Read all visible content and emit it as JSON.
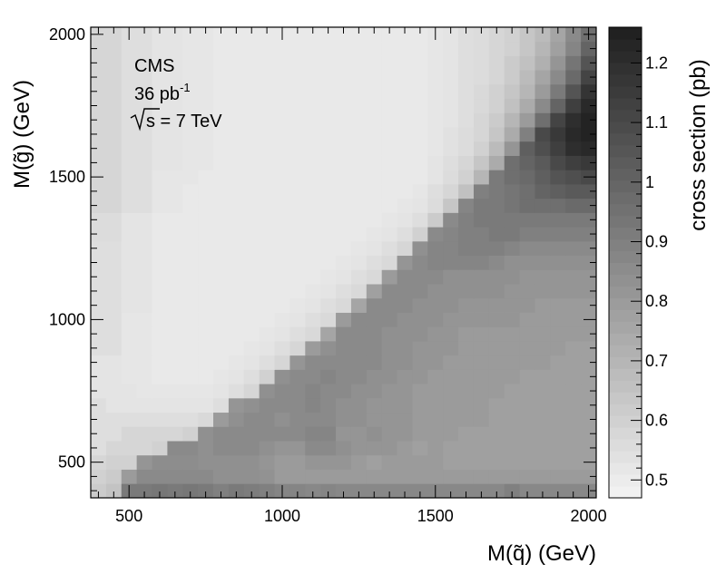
{
  "chart_data": {
    "type": "heatmap",
    "xlabel": "M(q̃)  (GeV)",
    "ylabel": "M(g̃)  (GeV)",
    "colorbar_label": "cross section (pb)",
    "annotation": {
      "experiment": "CMS",
      "lumi_value": "36 pb",
      "lumi_exp": "-1",
      "energy": "s = 7 TeV"
    },
    "xlim": [
      375,
      2025
    ],
    "ylim": [
      375,
      2025
    ],
    "x_ticks": [
      500,
      1000,
      1500,
      2000
    ],
    "y_ticks": [
      500,
      1000,
      1500,
      2000
    ],
    "z_range": [
      0.47,
      1.26
    ],
    "colorbar_ticks": [
      "0.5",
      "0.6",
      "0.7",
      "0.8",
      "0.9",
      "1",
      "1.1",
      "1.2"
    ],
    "colorbar_tick_values": [
      0.5,
      0.6,
      0.7,
      0.8,
      0.9,
      1.0,
      1.1,
      1.2
    ],
    "x_bin_edges": [
      375,
      2025
    ],
    "y_bin_edges": [
      375,
      2025
    ],
    "bin_width": 50,
    "values_bottom_to_top": [
      [
        0.62,
        0.65,
        0.92,
        0.92,
        0.93,
        0.92,
        0.93,
        0.92,
        0.9,
        0.92,
        0.91,
        0.9,
        0.88,
        0.88,
        0.87,
        0.88,
        0.87,
        0.87,
        0.87,
        0.87,
        0.87,
        0.87,
        0.87,
        0.87,
        0.87,
        0.87,
        0.87,
        0.9,
        0.87,
        0.87,
        0.87,
        0.87,
        0.87
      ],
      [
        0.6,
        0.62,
        0.8,
        0.86,
        0.86,
        0.86,
        0.86,
        0.86,
        0.84,
        0.84,
        0.84,
        0.83,
        0.8,
        0.8,
        0.8,
        0.8,
        0.8,
        0.8,
        0.8,
        0.8,
        0.8,
        0.8,
        0.8,
        0.8,
        0.8,
        0.8,
        0.8,
        0.8,
        0.8,
        0.8,
        0.8,
        0.8,
        0.8
      ],
      [
        0.58,
        0.6,
        0.6,
        0.82,
        0.85,
        0.85,
        0.85,
        0.84,
        0.84,
        0.84,
        0.84,
        0.82,
        0.8,
        0.8,
        0.82,
        0.82,
        0.82,
        0.8,
        0.78,
        0.8,
        0.8,
        0.8,
        0.8,
        0.78,
        0.78,
        0.78,
        0.78,
        0.78,
        0.78,
        0.78,
        0.78,
        0.78,
        0.78
      ],
      [
        0.55,
        0.58,
        0.58,
        0.58,
        0.6,
        0.86,
        0.86,
        0.84,
        0.86,
        0.86,
        0.86,
        0.84,
        0.82,
        0.82,
        0.86,
        0.86,
        0.84,
        0.82,
        0.82,
        0.82,
        0.8,
        0.78,
        0.8,
        0.78,
        0.78,
        0.78,
        0.78,
        0.78,
        0.78,
        0.78,
        0.78,
        0.78,
        0.78
      ],
      [
        0.55,
        0.55,
        0.58,
        0.58,
        0.58,
        0.58,
        0.6,
        0.84,
        0.86,
        0.86,
        0.86,
        0.86,
        0.86,
        0.86,
        0.88,
        0.88,
        0.82,
        0.82,
        0.84,
        0.82,
        0.82,
        0.8,
        0.8,
        0.8,
        0.78,
        0.78,
        0.78,
        0.78,
        0.78,
        0.78,
        0.78,
        0.78,
        0.78
      ],
      [
        0.55,
        0.55,
        0.55,
        0.55,
        0.55,
        0.55,
        0.55,
        0.57,
        0.8,
        0.84,
        0.86,
        0.86,
        0.84,
        0.86,
        0.86,
        0.86,
        0.84,
        0.84,
        0.82,
        0.82,
        0.82,
        0.8,
        0.8,
        0.8,
        0.8,
        0.8,
        0.78,
        0.78,
        0.78,
        0.78,
        0.78,
        0.78,
        0.78
      ],
      [
        0.55,
        0.53,
        0.53,
        0.53,
        0.53,
        0.53,
        0.53,
        0.53,
        0.55,
        0.82,
        0.84,
        0.86,
        0.86,
        0.86,
        0.88,
        0.86,
        0.84,
        0.84,
        0.82,
        0.82,
        0.82,
        0.8,
        0.8,
        0.8,
        0.8,
        0.8,
        0.78,
        0.78,
        0.78,
        0.78,
        0.78,
        0.78,
        0.78
      ],
      [
        0.53,
        0.53,
        0.53,
        0.52,
        0.52,
        0.52,
        0.52,
        0.52,
        0.53,
        0.55,
        0.58,
        0.84,
        0.86,
        0.86,
        0.88,
        0.86,
        0.86,
        0.84,
        0.84,
        0.82,
        0.82,
        0.8,
        0.8,
        0.8,
        0.8,
        0.8,
        0.8,
        0.78,
        0.78,
        0.78,
        0.78,
        0.78,
        0.78
      ],
      [
        0.53,
        0.53,
        0.52,
        0.52,
        0.51,
        0.51,
        0.51,
        0.51,
        0.52,
        0.53,
        0.55,
        0.6,
        0.84,
        0.86,
        0.86,
        0.88,
        0.86,
        0.86,
        0.84,
        0.84,
        0.82,
        0.82,
        0.8,
        0.8,
        0.8,
        0.8,
        0.8,
        0.8,
        0.78,
        0.78,
        0.78,
        0.78,
        0.78
      ],
      [
        0.53,
        0.53,
        0.52,
        0.52,
        0.51,
        0.51,
        0.51,
        0.51,
        0.51,
        0.52,
        0.53,
        0.55,
        0.58,
        0.82,
        0.86,
        0.86,
        0.86,
        0.86,
        0.86,
        0.84,
        0.84,
        0.82,
        0.82,
        0.8,
        0.8,
        0.8,
        0.8,
        0.8,
        0.8,
        0.8,
        0.78,
        0.78,
        0.78
      ],
      [
        0.55,
        0.55,
        0.52,
        0.52,
        0.51,
        0.51,
        0.51,
        0.51,
        0.51,
        0.51,
        0.52,
        0.53,
        0.55,
        0.58,
        0.8,
        0.84,
        0.86,
        0.86,
        0.86,
        0.84,
        0.84,
        0.82,
        0.82,
        0.82,
        0.8,
        0.8,
        0.8,
        0.8,
        0.8,
        0.8,
        0.8,
        0.78,
        0.78
      ],
      [
        0.55,
        0.55,
        0.52,
        0.52,
        0.51,
        0.51,
        0.51,
        0.51,
        0.51,
        0.51,
        0.51,
        0.52,
        0.53,
        0.55,
        0.57,
        0.76,
        0.86,
        0.86,
        0.86,
        0.84,
        0.84,
        0.84,
        0.82,
        0.82,
        0.8,
        0.8,
        0.8,
        0.8,
        0.8,
        0.8,
        0.8,
        0.8,
        0.8
      ],
      [
        0.55,
        0.55,
        0.52,
        0.52,
        0.51,
        0.51,
        0.51,
        0.51,
        0.51,
        0.51,
        0.51,
        0.51,
        0.52,
        0.53,
        0.55,
        0.57,
        0.8,
        0.86,
        0.86,
        0.86,
        0.84,
        0.84,
        0.84,
        0.82,
        0.82,
        0.82,
        0.82,
        0.82,
        0.8,
        0.8,
        0.8,
        0.8,
        0.8
      ],
      [
        0.55,
        0.55,
        0.53,
        0.53,
        0.51,
        0.51,
        0.51,
        0.51,
        0.51,
        0.51,
        0.51,
        0.51,
        0.51,
        0.52,
        0.53,
        0.55,
        0.57,
        0.76,
        0.86,
        0.86,
        0.86,
        0.84,
        0.84,
        0.84,
        0.82,
        0.82,
        0.82,
        0.82,
        0.82,
        0.8,
        0.8,
        0.8,
        0.8
      ],
      [
        0.55,
        0.55,
        0.53,
        0.53,
        0.51,
        0.51,
        0.51,
        0.51,
        0.51,
        0.51,
        0.51,
        0.51,
        0.51,
        0.51,
        0.52,
        0.53,
        0.55,
        0.57,
        0.78,
        0.86,
        0.86,
        0.86,
        0.84,
        0.84,
        0.84,
        0.84,
        0.84,
        0.82,
        0.82,
        0.82,
        0.82,
        0.82,
        0.82
      ],
      [
        0.55,
        0.55,
        0.53,
        0.53,
        0.51,
        0.51,
        0.51,
        0.51,
        0.51,
        0.51,
        0.51,
        0.51,
        0.51,
        0.51,
        0.51,
        0.52,
        0.53,
        0.55,
        0.57,
        0.8,
        0.86,
        0.86,
        0.86,
        0.84,
        0.84,
        0.84,
        0.84,
        0.84,
        0.82,
        0.82,
        0.82,
        0.82,
        0.82
      ],
      [
        0.55,
        0.55,
        0.53,
        0.53,
        0.51,
        0.51,
        0.51,
        0.51,
        0.51,
        0.51,
        0.51,
        0.51,
        0.51,
        0.51,
        0.51,
        0.51,
        0.52,
        0.53,
        0.55,
        0.57,
        0.82,
        0.86,
        0.88,
        0.88,
        0.88,
        0.88,
        0.86,
        0.84,
        0.84,
        0.84,
        0.84,
        0.84,
        0.84
      ],
      [
        0.55,
        0.55,
        0.53,
        0.53,
        0.51,
        0.51,
        0.51,
        0.51,
        0.51,
        0.51,
        0.51,
        0.51,
        0.51,
        0.51,
        0.51,
        0.51,
        0.51,
        0.52,
        0.53,
        0.55,
        0.58,
        0.84,
        0.88,
        0.88,
        0.9,
        0.9,
        0.9,
        0.88,
        0.86,
        0.86,
        0.86,
        0.86,
        0.86
      ],
      [
        0.56,
        0.56,
        0.53,
        0.53,
        0.51,
        0.51,
        0.51,
        0.51,
        0.51,
        0.51,
        0.51,
        0.51,
        0.51,
        0.51,
        0.51,
        0.51,
        0.51,
        0.51,
        0.52,
        0.53,
        0.55,
        0.6,
        0.86,
        0.88,
        0.9,
        0.9,
        0.92,
        0.92,
        0.9,
        0.9,
        0.9,
        0.9,
        0.9
      ],
      [
        0.56,
        0.56,
        0.53,
        0.53,
        0.51,
        0.51,
        0.51,
        0.51,
        0.51,
        0.51,
        0.51,
        0.51,
        0.51,
        0.51,
        0.51,
        0.51,
        0.51,
        0.51,
        0.51,
        0.52,
        0.53,
        0.55,
        0.62,
        0.86,
        0.9,
        0.92,
        0.92,
        0.92,
        0.92,
        0.92,
        0.92,
        0.92,
        0.92
      ],
      [
        0.58,
        0.58,
        0.55,
        0.55,
        0.52,
        0.52,
        0.51,
        0.51,
        0.51,
        0.51,
        0.51,
        0.51,
        0.51,
        0.51,
        0.51,
        0.51,
        0.51,
        0.51,
        0.51,
        0.51,
        0.52,
        0.53,
        0.56,
        0.64,
        0.88,
        0.92,
        0.92,
        0.94,
        0.96,
        0.96,
        0.96,
        0.98,
        0.98
      ],
      [
        0.58,
        0.58,
        0.55,
        0.55,
        0.52,
        0.52,
        0.51,
        0.51,
        0.51,
        0.51,
        0.51,
        0.51,
        0.51,
        0.51,
        0.51,
        0.51,
        0.51,
        0.51,
        0.51,
        0.51,
        0.51,
        0.52,
        0.55,
        0.58,
        0.66,
        0.9,
        0.92,
        0.94,
        0.96,
        1.0,
        1.02,
        1.04,
        1.04
      ],
      [
        0.58,
        0.58,
        0.55,
        0.55,
        0.52,
        0.52,
        0.52,
        0.51,
        0.51,
        0.51,
        0.51,
        0.51,
        0.51,
        0.51,
        0.51,
        0.51,
        0.51,
        0.51,
        0.51,
        0.51,
        0.51,
        0.51,
        0.53,
        0.56,
        0.6,
        0.7,
        0.92,
        0.96,
        0.98,
        1.02,
        1.06,
        1.08,
        1.1
      ],
      [
        0.58,
        0.58,
        0.55,
        0.55,
        0.53,
        0.53,
        0.52,
        0.52,
        0.51,
        0.51,
        0.51,
        0.51,
        0.51,
        0.51,
        0.51,
        0.51,
        0.51,
        0.51,
        0.51,
        0.51,
        0.51,
        0.51,
        0.53,
        0.55,
        0.58,
        0.64,
        0.74,
        0.96,
        1.0,
        1.04,
        1.1,
        1.14,
        1.16
      ],
      [
        0.58,
        0.58,
        0.55,
        0.55,
        0.53,
        0.53,
        0.52,
        0.52,
        0.51,
        0.51,
        0.51,
        0.51,
        0.51,
        0.51,
        0.51,
        0.51,
        0.51,
        0.51,
        0.51,
        0.51,
        0.51,
        0.51,
        0.52,
        0.54,
        0.56,
        0.6,
        0.68,
        0.82,
        1.02,
        1.08,
        1.14,
        1.2,
        1.22
      ],
      [
        0.58,
        0.58,
        0.55,
        0.55,
        0.53,
        0.53,
        0.52,
        0.52,
        0.51,
        0.51,
        0.51,
        0.51,
        0.51,
        0.51,
        0.51,
        0.51,
        0.51,
        0.51,
        0.51,
        0.51,
        0.51,
        0.51,
        0.52,
        0.54,
        0.56,
        0.58,
        0.64,
        0.74,
        0.9,
        1.1,
        1.16,
        1.22,
        1.24
      ],
      [
        0.58,
        0.58,
        0.55,
        0.55,
        0.53,
        0.53,
        0.52,
        0.52,
        0.51,
        0.51,
        0.51,
        0.51,
        0.51,
        0.51,
        0.51,
        0.51,
        0.51,
        0.51,
        0.51,
        0.51,
        0.51,
        0.51,
        0.52,
        0.53,
        0.55,
        0.58,
        0.62,
        0.7,
        0.8,
        0.96,
        1.12,
        1.2,
        1.24
      ],
      [
        0.58,
        0.58,
        0.55,
        0.55,
        0.53,
        0.53,
        0.52,
        0.52,
        0.51,
        0.51,
        0.51,
        0.51,
        0.51,
        0.51,
        0.51,
        0.51,
        0.51,
        0.51,
        0.51,
        0.51,
        0.51,
        0.51,
        0.52,
        0.53,
        0.55,
        0.57,
        0.6,
        0.66,
        0.74,
        0.86,
        1.0,
        1.14,
        1.22
      ],
      [
        0.58,
        0.58,
        0.55,
        0.55,
        0.53,
        0.53,
        0.52,
        0.52,
        0.51,
        0.51,
        0.51,
        0.51,
        0.51,
        0.51,
        0.51,
        0.51,
        0.51,
        0.51,
        0.51,
        0.51,
        0.51,
        0.51,
        0.52,
        0.53,
        0.55,
        0.57,
        0.6,
        0.64,
        0.7,
        0.8,
        0.92,
        1.06,
        1.18
      ],
      [
        0.58,
        0.58,
        0.55,
        0.55,
        0.53,
        0.53,
        0.52,
        0.52,
        0.51,
        0.51,
        0.51,
        0.51,
        0.51,
        0.51,
        0.51,
        0.51,
        0.51,
        0.51,
        0.51,
        0.51,
        0.51,
        0.51,
        0.52,
        0.53,
        0.55,
        0.56,
        0.58,
        0.62,
        0.68,
        0.76,
        0.86,
        0.98,
        1.12
      ],
      [
        0.58,
        0.58,
        0.55,
        0.55,
        0.53,
        0.53,
        0.52,
        0.52,
        0.51,
        0.51,
        0.51,
        0.51,
        0.51,
        0.51,
        0.51,
        0.51,
        0.51,
        0.51,
        0.51,
        0.51,
        0.51,
        0.51,
        0.52,
        0.53,
        0.55,
        0.56,
        0.58,
        0.62,
        0.66,
        0.72,
        0.82,
        0.94,
        1.06
      ],
      [
        0.58,
        0.58,
        0.55,
        0.55,
        0.53,
        0.53,
        0.52,
        0.52,
        0.51,
        0.51,
        0.51,
        0.51,
        0.51,
        0.51,
        0.51,
        0.51,
        0.51,
        0.51,
        0.51,
        0.51,
        0.51,
        0.51,
        0.52,
        0.53,
        0.55,
        0.56,
        0.58,
        0.6,
        0.64,
        0.7,
        0.78,
        0.88,
        1.0
      ],
      [
        0.58,
        0.58,
        0.55,
        0.55,
        0.53,
        0.53,
        0.52,
        0.52,
        0.51,
        0.51,
        0.51,
        0.51,
        0.51,
        0.51,
        0.51,
        0.51,
        0.51,
        0.51,
        0.51,
        0.51,
        0.51,
        0.51,
        0.52,
        0.53,
        0.55,
        0.56,
        0.58,
        0.6,
        0.64,
        0.68,
        0.76,
        0.86,
        0.96
      ]
    ],
    "grid": false,
    "colors": {
      "background": "#ffffff",
      "axis": "#000000",
      "low": "#f4f4f4",
      "high": "#1e1e1e"
    }
  }
}
